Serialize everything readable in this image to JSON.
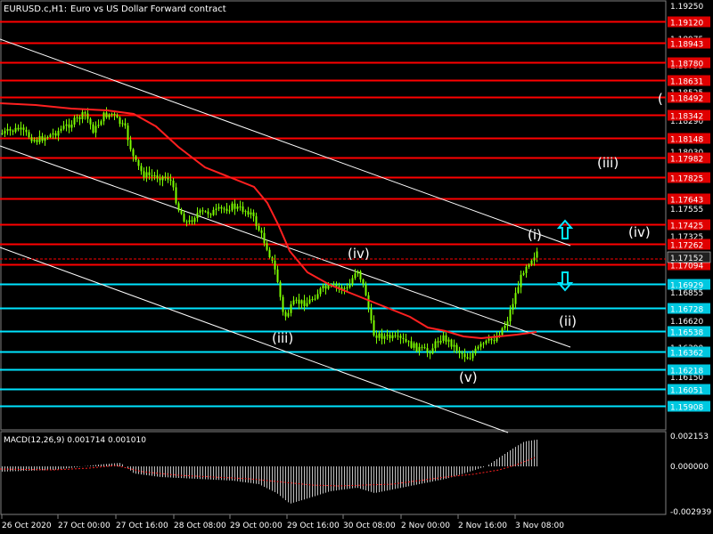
{
  "header": {
    "symbol": "EURUSD.c,H1:",
    "description": "Euro vs US Dollar Forward contract"
  },
  "price_axis": {
    "ticks": [
      "1.19250",
      "1.18975",
      "1.18755",
      "1.18525",
      "1.18290",
      "1.18030",
      "1.17800",
      "1.17555",
      "1.17325",
      "1.17080",
      "1.16855",
      "1.16620",
      "1.16390",
      "1.16150",
      "1.15925"
    ]
  },
  "price_levels": {
    "red": [
      "1.19120",
      "1.18943",
      "1.18780",
      "1.18631",
      "1.18492",
      "1.18342",
      "1.18148",
      "1.17982",
      "1.17825",
      "1.17643",
      "1.17425",
      "1.17262",
      "1.17094"
    ],
    "cyan": [
      "1.16929",
      "1.16728",
      "1.16538",
      "1.16362",
      "1.16218",
      "1.16051",
      "1.15908"
    ],
    "current": "1.17152"
  },
  "wave_labels": {
    "main_iii": "(iii)",
    "main_iv": "(iv)",
    "main_v": "(v)",
    "main_i": "(i)",
    "right_open": "(",
    "right_iii": "(iii)",
    "right_iv": "(iv)",
    "right_ii": "(ii)"
  },
  "macd": {
    "label": "MACD(12,26,9) 0.001714 0.001010",
    "ticks": [
      "0.002153",
      "0.000000",
      "-0.002939"
    ]
  },
  "time_axis": {
    "labels": [
      "26 Oct 2020",
      "27 Oct 00:00",
      "27 Oct 16:00",
      "28 Oct 08:00",
      "29 Oct 00:00",
      "29 Oct 16:00",
      "30 Oct 08:00",
      "2 Nov 00:00",
      "2 Nov 16:00",
      "3 Nov 08:00"
    ]
  },
  "colors": {
    "background": "#000000",
    "candles": "#7CFC00",
    "moving_average": "#FF2020",
    "resistance": "#FF0000",
    "support": "#00E5FF",
    "channel": "#FFFFFF",
    "up_arrow": "#00E5FF",
    "down_arrow": "#00E5FF"
  },
  "icons": {
    "up": "arrow-up-icon",
    "down": "arrow-down-icon"
  }
}
